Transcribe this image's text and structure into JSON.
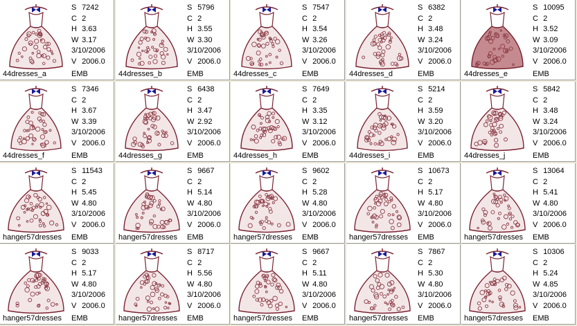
{
  "colors": {
    "stitch": "#8b3a44",
    "hanger": "#1a1a9a",
    "outline": "#7a2230"
  },
  "tiles": [
    {
      "name": "44dresses_a",
      "s": "7242",
      "c": "2",
      "h": "3.63",
      "w": "3.17",
      "date": "3/10/2006",
      "v": "2006.0",
      "fmt": "EMB"
    },
    {
      "name": "44dresses_b",
      "s": "5796",
      "c": "2",
      "h": "3.55",
      "w": "3.30",
      "date": "3/10/2006",
      "v": "2006.0",
      "fmt": "EMB"
    },
    {
      "name": "44dresses_c",
      "s": "7547",
      "c": "2",
      "h": "3.54",
      "w": "3.26",
      "date": "3/10/2006",
      "v": "2006.0",
      "fmt": "EMB"
    },
    {
      "name": "44dresses_d",
      "s": "6382",
      "c": "2",
      "h": "3.48",
      "w": "3.24",
      "date": "3/10/2006",
      "v": "2006.0",
      "fmt": "EMB"
    },
    {
      "name": "44dresses_e",
      "s": "10095",
      "c": "2",
      "h": "3.52",
      "w": "3.09",
      "date": "3/10/2006",
      "v": "2006.0",
      "fmt": "EMB"
    },
    {
      "name": "44dresses_f",
      "s": "7346",
      "c": "2",
      "h": "3.67",
      "w": "3.39",
      "date": "3/10/2006",
      "v": "2006.0",
      "fmt": "EMB"
    },
    {
      "name": "44dresses_g",
      "s": "6438",
      "c": "2",
      "h": "3.47",
      "w": "2.92",
      "date": "3/10/2006",
      "v": "2006.0",
      "fmt": "EMB"
    },
    {
      "name": "44dresses_h",
      "s": "7649",
      "c": "2",
      "h": "3.35",
      "w": "3.12",
      "date": "3/10/2006",
      "v": "2006.0",
      "fmt": "EMB"
    },
    {
      "name": "44dresses_i",
      "s": "5214",
      "c": "2",
      "h": "3.59",
      "w": "3.20",
      "date": "3/10/2006",
      "v": "2006.0",
      "fmt": "EMB"
    },
    {
      "name": "44dresses_j",
      "s": "5842",
      "c": "2",
      "h": "3.48",
      "w": "3.24",
      "date": "3/10/2006",
      "v": "2006.0",
      "fmt": "EMB"
    },
    {
      "name": "hanger57dresses",
      "s": "11543",
      "c": "2",
      "h": "5.45",
      "w": "4.80",
      "date": "3/10/2006",
      "v": "2006.0",
      "fmt": "EMB"
    },
    {
      "name": "hanger57dresses",
      "s": "9667",
      "c": "2",
      "h": "5.14",
      "w": "4.80",
      "date": "3/10/2006",
      "v": "2006.0",
      "fmt": "EMB"
    },
    {
      "name": "hanger57dresses",
      "s": "9602",
      "c": "2",
      "h": "5.28",
      "w": "4.80",
      "date": "3/10/2006",
      "v": "2006.0",
      "fmt": "EMB"
    },
    {
      "name": "hanger57dresses",
      "s": "10673",
      "c": "2",
      "h": "5.17",
      "w": "4.80",
      "date": "3/10/2006",
      "v": "2006.0",
      "fmt": "EMB"
    },
    {
      "name": "hanger57dresses",
      "s": "13064",
      "c": "2",
      "h": "5.41",
      "w": "4.80",
      "date": "3/10/2006",
      "v": "2006.0",
      "fmt": "EMB"
    },
    {
      "name": "hanger57dresses",
      "s": "9033",
      "c": "2",
      "h": "5.17",
      "w": "4.80",
      "date": "3/10/2006",
      "v": "2006.0",
      "fmt": "EMB"
    },
    {
      "name": "hanger57dresses",
      "s": "8717",
      "c": "2",
      "h": "5.56",
      "w": "4.80",
      "date": "3/10/2006",
      "v": "2006.0",
      "fmt": "EMB"
    },
    {
      "name": "hanger57dresses",
      "s": "9667",
      "c": "2",
      "h": "5.11",
      "w": "4.80",
      "date": "3/10/2006",
      "v": "2006.0",
      "fmt": "EMB"
    },
    {
      "name": "hanger57dresses",
      "s": "7867",
      "c": "2",
      "h": "5.30",
      "w": "4.80",
      "date": "3/10/2006",
      "v": "2006.0",
      "fmt": "EMB"
    },
    {
      "name": "hanger57dresses",
      "s": "10306",
      "c": "2",
      "h": "5.24",
      "w": "4.85",
      "date": "3/10/2006",
      "v": "2006.0",
      "fmt": "EMB"
    }
  ],
  "labels": {
    "s": "S",
    "c": "C",
    "h": "H",
    "w": "W",
    "v": "V"
  }
}
